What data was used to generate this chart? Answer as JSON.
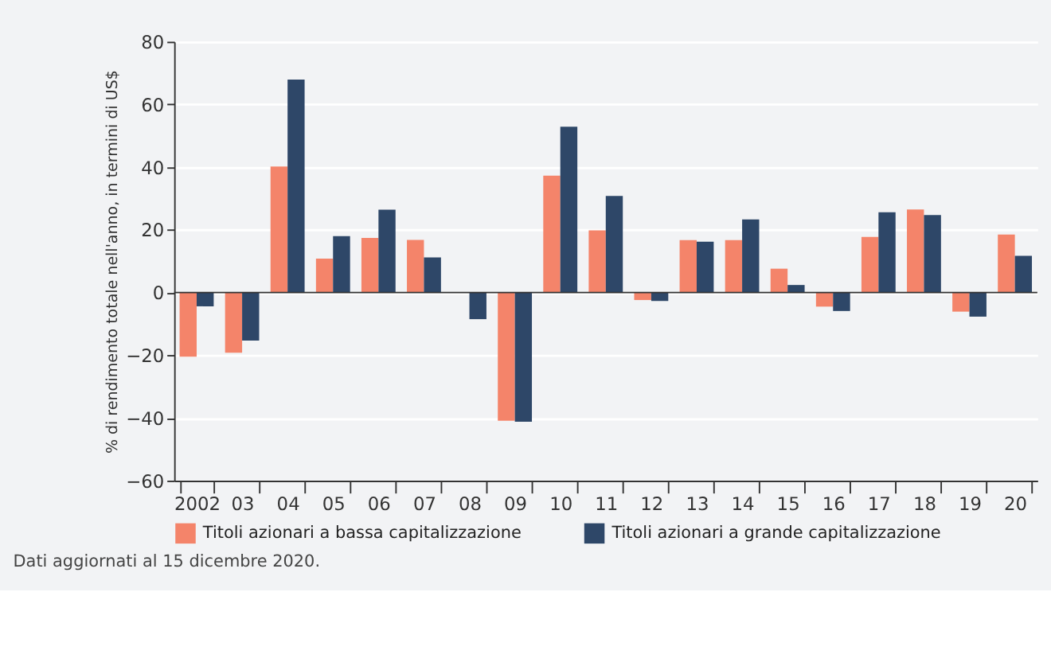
{
  "chart_data": {
    "type": "bar",
    "ylabel": "% di rendimento totale nell'anno, in termini di US$",
    "categories": [
      "2002",
      "03",
      "04",
      "05",
      "06",
      "07",
      "08",
      "09",
      "10",
      "11",
      "12",
      "13",
      "14",
      "15",
      "16",
      "17",
      "18",
      "19",
      "20"
    ],
    "series": [
      {
        "name": "Titoli azionari a bassa capitalizzazione",
        "color": "#f4846a",
        "values": [
          -20.5,
          -19.2,
          40.2,
          10.8,
          17.4,
          16.8,
          0,
          -40.9,
          37.3,
          19.8,
          -2.4,
          16.7,
          16.7,
          7.6,
          -4.5,
          17.7,
          26.5,
          -6.1,
          18.5
        ]
      },
      {
        "name": "Titoli azionari a grande capitalizzazione",
        "color": "#2e4768",
        "values": [
          -4.4,
          -15.3,
          67.9,
          18.0,
          26.4,
          11.2,
          -8.5,
          -41.2,
          52.9,
          30.8,
          -2.7,
          16.2,
          23.3,
          2.4,
          -5.9,
          25.6,
          24.7,
          -7.7,
          11.7
        ]
      }
    ],
    "ylim": [
      -60,
      80
    ],
    "yticks": [
      -60,
      -40,
      -20,
      0,
      20,
      40,
      60,
      80
    ],
    "grid": "y",
    "legend": "bottom",
    "annotations": [
      "Dati aggiornati al 15 dicembre 2020."
    ]
  }
}
